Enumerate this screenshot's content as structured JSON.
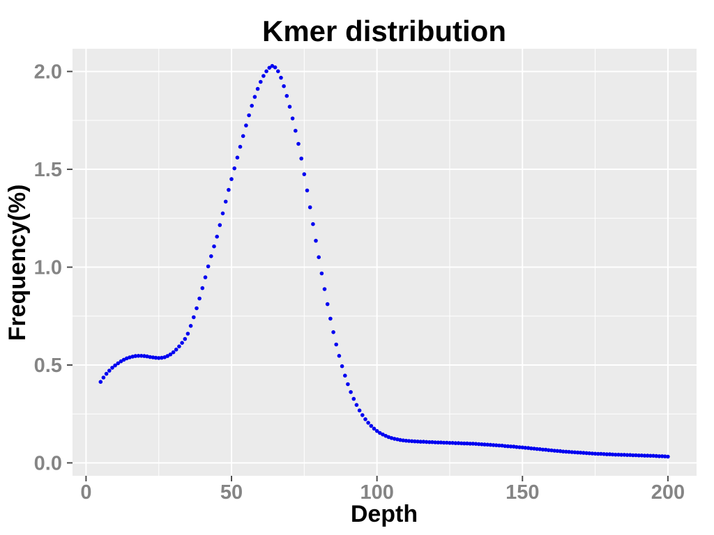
{
  "chart_data": {
    "type": "scatter",
    "title": "Kmer distribution",
    "xlabel": "Depth",
    "ylabel": "Frequency(%)",
    "legend": "none",
    "grid": "on",
    "style": "ggplot2-gray-panel",
    "panel_background": "#EBEBEB",
    "grid_color": "#FFFFFF",
    "point_color": "#0000F0",
    "tick_label_color": "#858585",
    "tick_mark_color": "#4D4D4D",
    "title_color": "#000000",
    "xlim": [
      -4.65,
      209.85
    ],
    "ylim": [
      -0.066,
      2.116
    ],
    "x_tick_values": [
      0,
      50,
      100,
      150,
      200
    ],
    "x_tick_labels": [
      "0",
      "50",
      "100",
      "150",
      "200"
    ],
    "x_minor_ticks": [
      25,
      75,
      125,
      175
    ],
    "y_tick_values": [
      0.0,
      0.5,
      1.0,
      1.5,
      2.0
    ],
    "y_tick_labels": [
      "0.0",
      "0.5",
      "1.0",
      "1.5",
      "2.0"
    ],
    "y_minor_ticks": [
      0.25,
      0.75,
      1.25,
      1.75
    ],
    "x": {
      "label": "Depth",
      "start": 5,
      "end": 200,
      "step": 1
    },
    "series": [
      {
        "name": "kmer-frequency-percent",
        "color": "#0000F0",
        "values": [
          0.414,
          0.436,
          0.455,
          0.471,
          0.486,
          0.498,
          0.509,
          0.519,
          0.527,
          0.534,
          0.539,
          0.543,
          0.546,
          0.547,
          0.547,
          0.546,
          0.544,
          0.541,
          0.539,
          0.537,
          0.536,
          0.537,
          0.54,
          0.546,
          0.554,
          0.565,
          0.579,
          0.595,
          0.613,
          0.633,
          0.66,
          0.7,
          0.744,
          0.79,
          0.84,
          0.893,
          0.948,
          1.004,
          1.056,
          1.106,
          1.156,
          1.215,
          1.275,
          1.335,
          1.395,
          1.45,
          1.505,
          1.56,
          1.615,
          1.67,
          1.724,
          1.776,
          1.825,
          1.87,
          1.911,
          1.947,
          1.977,
          2.001,
          2.019,
          2.028,
          2.021,
          2.001,
          1.968,
          1.925,
          1.875,
          1.82,
          1.76,
          1.697,
          1.63,
          1.555,
          1.475,
          1.392,
          1.306,
          1.22,
          1.135,
          1.051,
          0.968,
          0.888,
          0.811,
          0.737,
          0.668,
          0.605,
          0.547,
          0.494,
          0.446,
          0.402,
          0.362,
          0.327,
          0.296,
          0.268,
          0.244,
          0.223,
          0.205,
          0.189,
          0.175,
          0.163,
          0.153,
          0.145,
          0.138,
          0.132,
          0.127,
          0.123,
          0.12,
          0.117,
          0.115,
          0.113,
          0.112,
          0.111,
          0.11,
          0.109,
          0.108,
          0.108,
          0.107,
          0.106,
          0.106,
          0.105,
          0.104,
          0.104,
          0.103,
          0.103,
          0.102,
          0.102,
          0.101,
          0.101,
          0.1,
          0.099,
          0.099,
          0.098,
          0.098,
          0.097,
          0.096,
          0.095,
          0.094,
          0.093,
          0.092,
          0.091,
          0.09,
          0.089,
          0.088,
          0.086,
          0.085,
          0.084,
          0.083,
          0.081,
          0.08,
          0.079,
          0.077,
          0.076,
          0.074,
          0.073,
          0.071,
          0.07,
          0.068,
          0.067,
          0.065,
          0.064,
          0.062,
          0.061,
          0.06,
          0.058,
          0.057,
          0.056,
          0.055,
          0.054,
          0.053,
          0.052,
          0.051,
          0.05,
          0.049,
          0.048,
          0.047,
          0.046,
          0.046,
          0.045,
          0.044,
          0.044,
          0.043,
          0.042,
          0.042,
          0.041,
          0.041,
          0.04,
          0.04,
          0.039,
          0.039,
          0.038,
          0.038,
          0.037,
          0.037,
          0.036,
          0.036,
          0.035,
          0.034,
          0.034,
          0.033,
          0.032
        ]
      }
    ]
  }
}
